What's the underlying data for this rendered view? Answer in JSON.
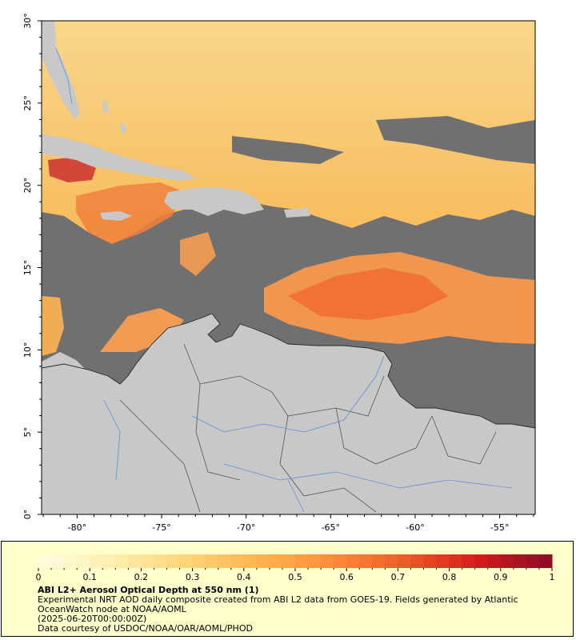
{
  "map": {
    "lon_ticks": [
      {
        "value": -80,
        "label": "-80°"
      },
      {
        "value": -75,
        "label": "-75°"
      },
      {
        "value": -70,
        "label": "-70°"
      },
      {
        "value": -65,
        "label": "-65°"
      },
      {
        "value": -60,
        "label": "-60°"
      },
      {
        "value": -55,
        "label": "-55°"
      }
    ],
    "lat_ticks": [
      {
        "value": 0,
        "label": "0°"
      },
      {
        "value": 5,
        "label": "5°"
      },
      {
        "value": 10,
        "label": "10°"
      },
      {
        "value": 15,
        "label": "15°"
      },
      {
        "value": 20,
        "label": "20°"
      },
      {
        "value": 25,
        "label": "25°"
      },
      {
        "value": 30,
        "label": "30°"
      }
    ],
    "lon_range": [
      -82.1,
      -52.9
    ],
    "lat_range": [
      0,
      30
    ],
    "colors": {
      "land": "#c8c8c8",
      "no_data": "#707070",
      "coastline": "#2a2a2a",
      "borders": "#555555",
      "rivers": "#5b8fd8"
    }
  },
  "legend": {
    "ticks": [
      "0",
      "0.1",
      "0.2",
      "0.3",
      "0.4",
      "0.5",
      "0.6",
      "0.7",
      "0.8",
      "0.9",
      "1"
    ],
    "range": [
      0,
      1
    ],
    "colors": [
      "#fffde0",
      "#ffeeb0",
      "#ffd578",
      "#ffb450",
      "#ff8c3c",
      "#f05a28",
      "#d7191c",
      "#8c0a26"
    ],
    "background": "#ffffcc"
  },
  "caption": {
    "title": "ABI L2+ Aerosol Optical Depth at 550 nm (1)",
    "description": "Experimental NRT AOD daily composite created from ABI L2 data from GOES-19. Fields generated by Atlantic OceanWatch node at NOAA/AOML",
    "date": "(2025-06-20T00:00:00Z)",
    "credit": "Data courtesy of USDOC/NOAA/OAR/AOML/PHOD"
  }
}
